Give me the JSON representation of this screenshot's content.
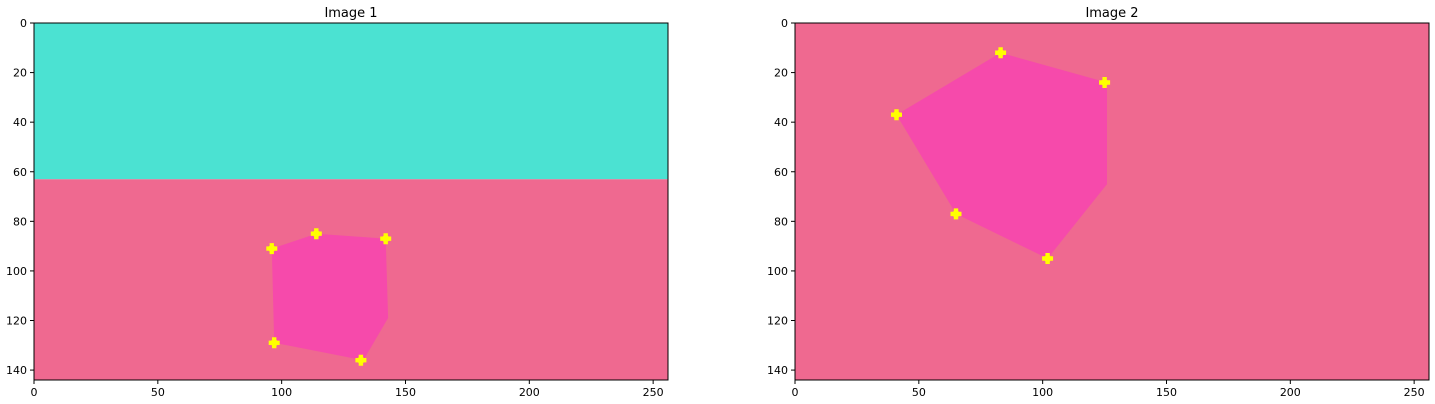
{
  "chart_data": [
    {
      "type": "image",
      "title": "Image 1",
      "xlim": [
        0,
        256
      ],
      "ylim": [
        144,
        0
      ],
      "xticks": [
        0,
        50,
        100,
        150,
        200,
        250
      ],
      "yticks": [
        0,
        20,
        40,
        60,
        80,
        100,
        120,
        140
      ],
      "regions": [
        {
          "color": "#4be2d2",
          "polygon": [
            [
              0,
              0
            ],
            [
              256,
              0
            ],
            [
              256,
              63
            ],
            [
              0,
              63
            ]
          ]
        },
        {
          "color": "#ef6990",
          "polygon": [
            [
              0,
              63
            ],
            [
              256,
              63
            ],
            [
              256,
              144
            ],
            [
              0,
              144
            ]
          ]
        },
        {
          "color": "#f64aab",
          "polygon": [
            [
              96,
              91
            ],
            [
              114,
              85
            ],
            [
              142,
              87
            ],
            [
              143,
              119
            ],
            [
              133,
              136
            ],
            [
              97,
              129
            ]
          ]
        }
      ],
      "markers": {
        "color": "#ffff00",
        "points": [
          [
            96,
            91
          ],
          [
            114,
            85
          ],
          [
            142,
            87
          ],
          [
            132,
            136
          ],
          [
            97,
            129
          ]
        ]
      }
    },
    {
      "type": "image",
      "title": "Image 2",
      "xlim": [
        0,
        256
      ],
      "ylim": [
        144,
        0
      ],
      "xticks": [
        0,
        50,
        100,
        150,
        200,
        250
      ],
      "yticks": [
        0,
        20,
        40,
        60,
        80,
        100,
        120,
        140
      ],
      "regions": [
        {
          "color": "#ef6990",
          "polygon": [
            [
              0,
              0
            ],
            [
              256,
              0
            ],
            [
              256,
              144
            ],
            [
              0,
              144
            ]
          ]
        },
        {
          "color": "#f64aab",
          "polygon": [
            [
              41,
              37
            ],
            [
              83,
              12
            ],
            [
              126,
              24
            ],
            [
              126,
              65
            ],
            [
              102,
              95
            ],
            [
              65,
              77
            ]
          ]
        }
      ],
      "markers": {
        "color": "#ffff00",
        "points": [
          [
            83,
            12
          ],
          [
            125,
            24
          ],
          [
            41,
            37
          ],
          [
            65,
            77
          ],
          [
            102,
            95
          ]
        ]
      }
    }
  ]
}
